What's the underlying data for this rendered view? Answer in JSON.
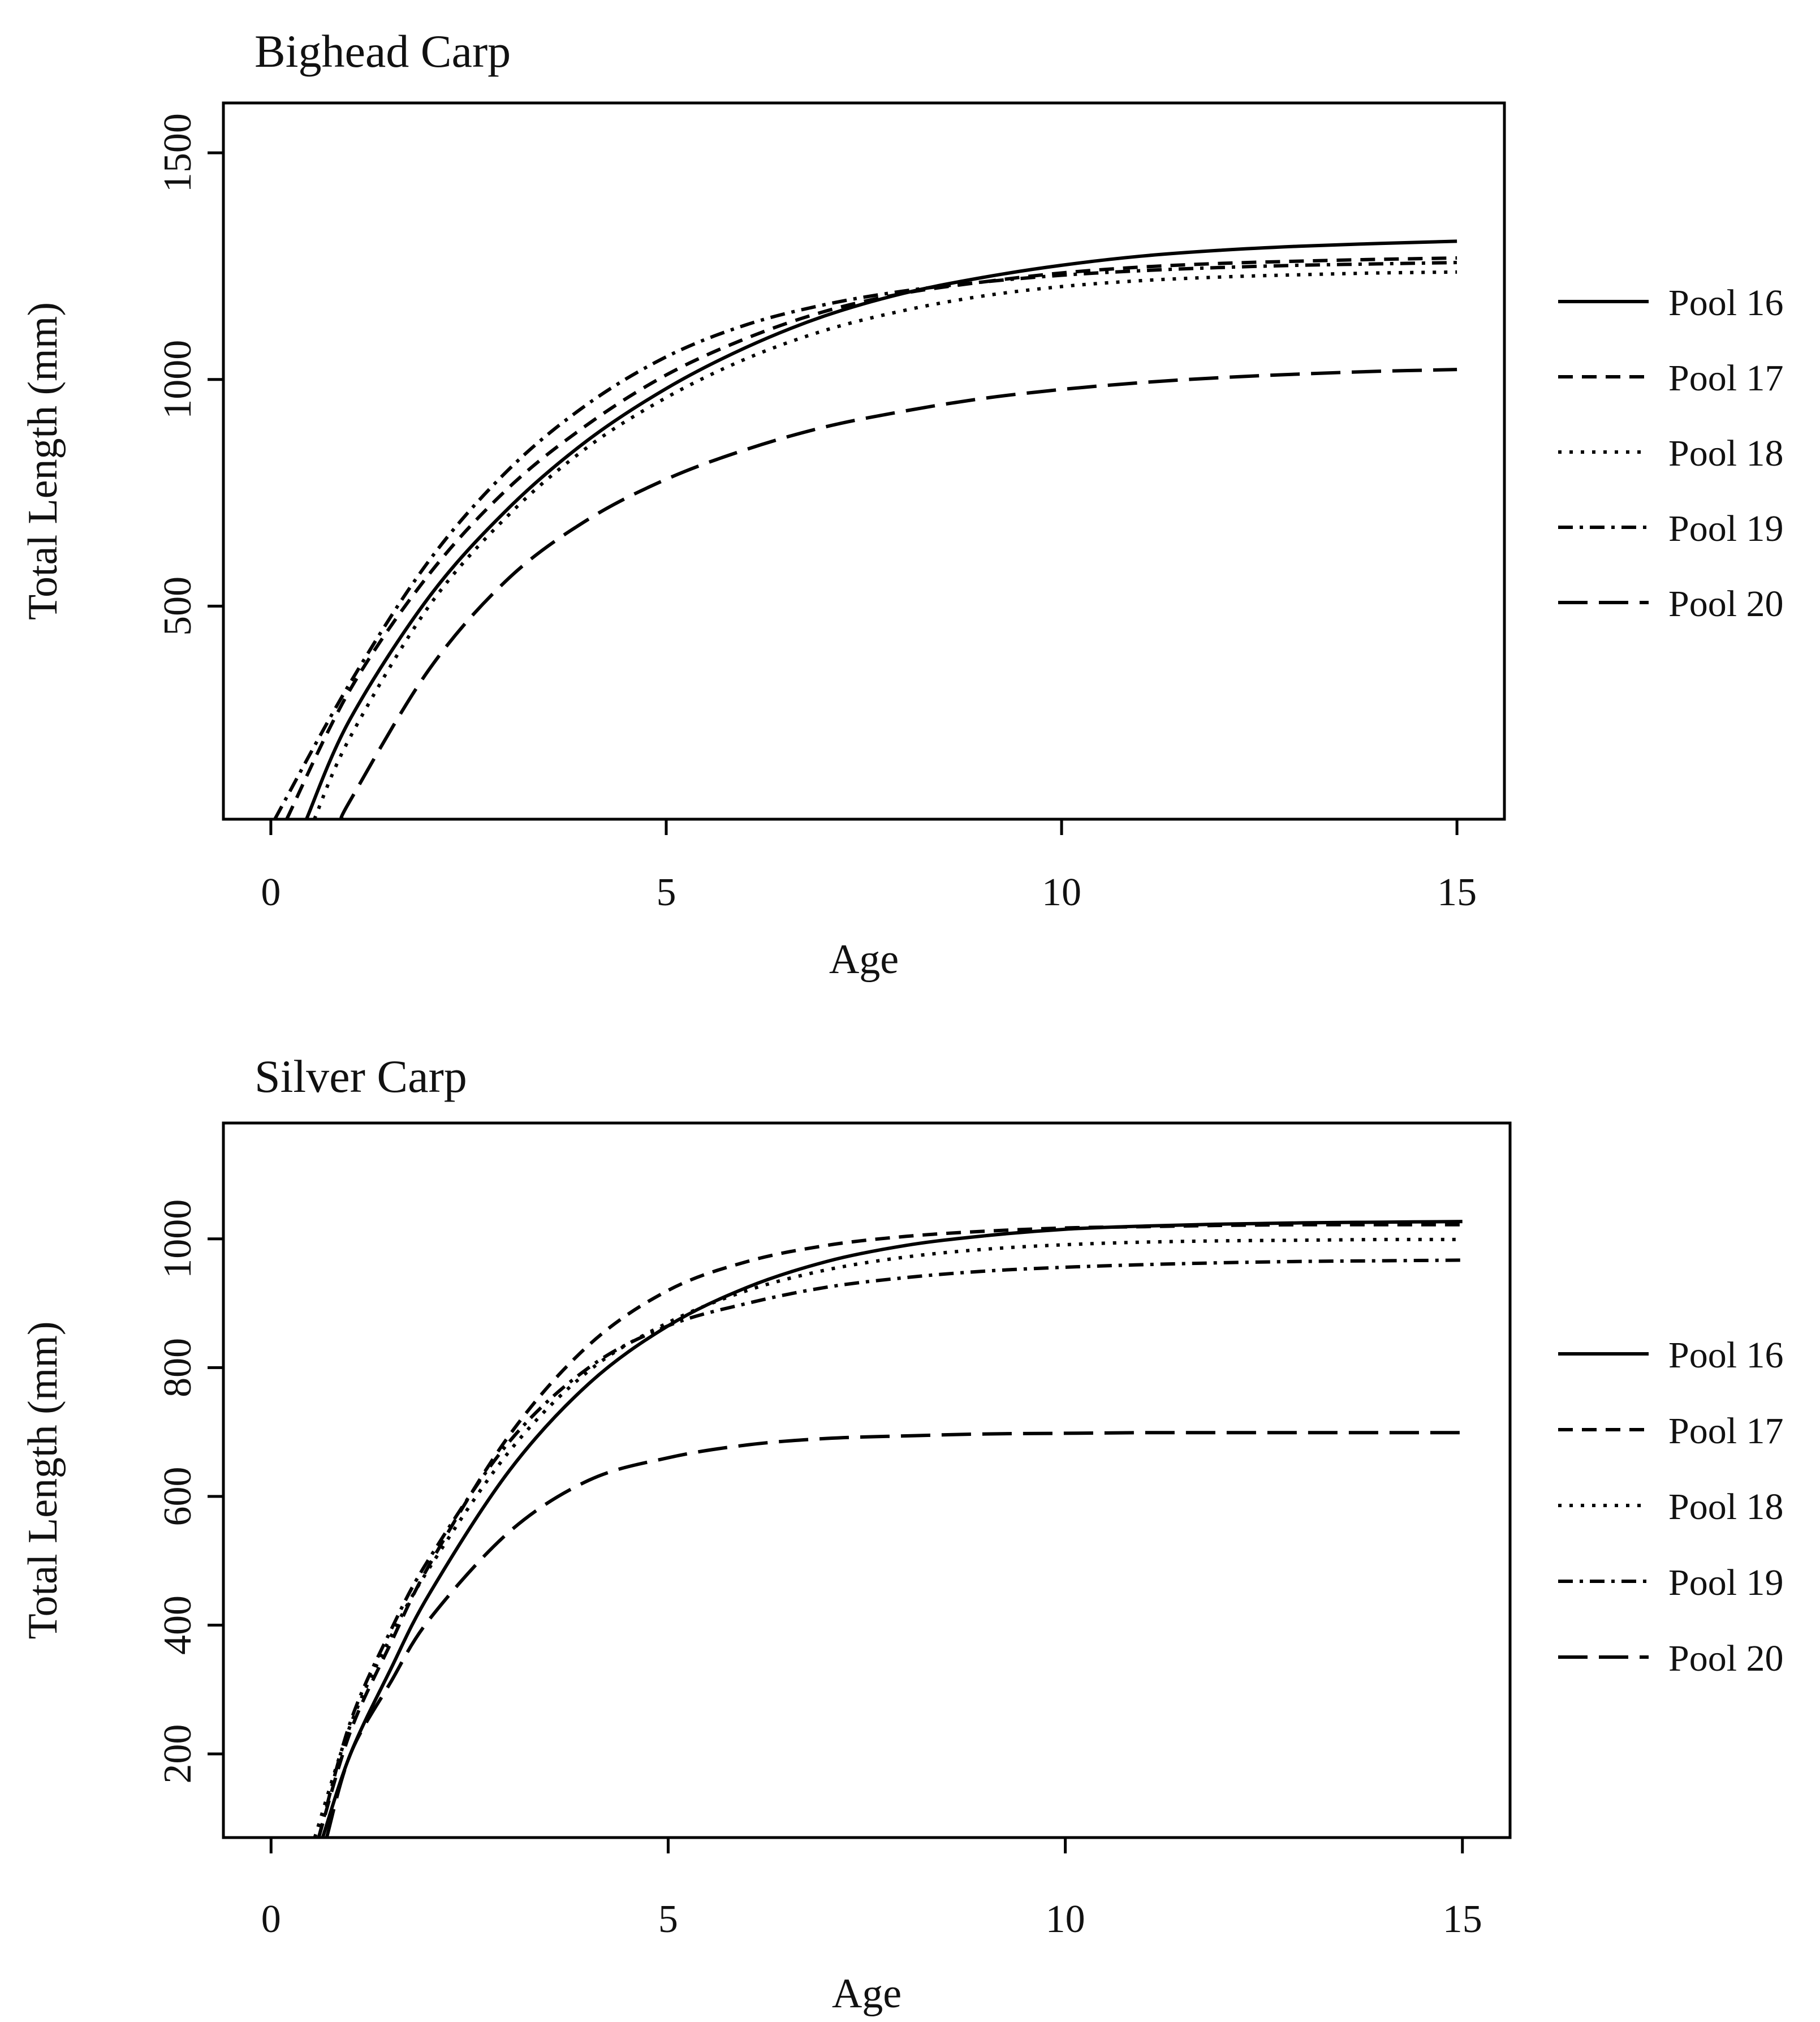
{
  "chart_data": [
    {
      "type": "line",
      "title": "Bighead Carp",
      "xlabel": "Age",
      "ylabel": "Total Length (mm)",
      "xlim": [
        -0.6,
        15.6
      ],
      "ylim": [
        30,
        1610
      ],
      "xticks": [
        0,
        5,
        10,
        15
      ],
      "yticks": [
        500,
        1000,
        1500
      ],
      "grid": false,
      "legend_position": "right",
      "series": [
        {
          "name": "Pool 16",
          "dash": "solid",
          "x": [
            0.45,
            1,
            2,
            3,
            4,
            5,
            6,
            7,
            8,
            9,
            10,
            11,
            12,
            13,
            14,
            15
          ],
          "y": [
            30,
            250,
            520,
            715,
            865,
            980,
            1070,
            1140,
            1190,
            1225,
            1252,
            1272,
            1285,
            1294,
            1300,
            1305
          ]
        },
        {
          "name": "Pool 17",
          "dash": "dashed",
          "x": [
            0.2,
            1,
            2,
            3,
            4,
            5,
            6,
            7,
            8,
            9,
            10,
            11,
            12,
            13,
            14,
            15
          ],
          "y": [
            30,
            315,
            570,
            760,
            900,
            1010,
            1090,
            1150,
            1190,
            1215,
            1235,
            1248,
            1256,
            1261,
            1265,
            1268
          ]
        },
        {
          "name": "Pool 18",
          "dash": "dotted",
          "x": [
            0.55,
            1,
            2,
            3,
            4,
            5,
            6,
            7,
            8,
            9,
            10,
            11,
            12,
            13,
            14,
            15
          ],
          "y": [
            30,
            210,
            500,
            700,
            850,
            960,
            1045,
            1108,
            1152,
            1184,
            1205,
            1218,
            1226,
            1231,
            1235,
            1237
          ]
        },
        {
          "name": "Pool 19",
          "dash": "dashdot",
          "x": [
            0.05,
            1,
            2,
            3,
            4,
            5,
            6,
            7,
            8,
            9,
            10,
            11,
            12,
            13,
            14,
            15
          ],
          "y": [
            30,
            330,
            600,
            800,
            945,
            1050,
            1120,
            1165,
            1195,
            1215,
            1230,
            1240,
            1247,
            1252,
            1255,
            1258
          ]
        },
        {
          "name": "Pool 20",
          "dash": "longdash",
          "x": [
            0.9,
            1,
            2,
            3,
            4,
            5,
            6,
            7,
            8,
            9,
            10,
            11,
            12,
            13,
            14,
            15
          ],
          "y": [
            30,
            70,
            360,
            560,
            690,
            780,
            845,
            895,
            930,
            958,
            978,
            993,
            1004,
            1012,
            1018,
            1022
          ]
        }
      ]
    },
    {
      "type": "line",
      "title": "Silver Carp",
      "xlabel": "Age",
      "ylabel": "Total Length (mm)",
      "xlim": [
        -0.6,
        15.6
      ],
      "ylim": [
        70,
        1180
      ],
      "xticks": [
        0,
        5,
        10,
        15
      ],
      "yticks": [
        200,
        400,
        600,
        800,
        1000
      ],
      "grid": false,
      "legend_position": "right",
      "series": [
        {
          "name": "Pool 16",
          "dash": "solid",
          "x": [
            0.65,
            1,
            1.5,
            2,
            3,
            4,
            5,
            6,
            7,
            8,
            9,
            10,
            11,
            12,
            13,
            14,
            15
          ],
          "y": [
            70,
            200,
            330,
            450,
            640,
            775,
            865,
            925,
            965,
            990,
            1005,
            1015,
            1020,
            1023,
            1025,
            1026,
            1027
          ]
        },
        {
          "name": "Pool 17",
          "dash": "dashed",
          "x": [
            0.6,
            1,
            1.5,
            2,
            3,
            4,
            5,
            6,
            7,
            8,
            9,
            10,
            11,
            12,
            13,
            14,
            15
          ],
          "y": [
            70,
            235,
            370,
            495,
            695,
            835,
            920,
            965,
            990,
            1004,
            1012,
            1017,
            1019,
            1021,
            1022,
            1022,
            1022
          ]
        },
        {
          "name": "Pool 18",
          "dash": "dotted",
          "x": [
            0.55,
            1,
            1.5,
            2,
            3,
            4,
            5,
            6,
            7,
            8,
            9,
            10,
            11,
            12,
            13,
            14,
            15
          ],
          "y": [
            70,
            245,
            380,
            490,
            670,
            795,
            870,
            920,
            952,
            972,
            984,
            991,
            995,
            997,
            998,
            999,
            999
          ]
        },
        {
          "name": "Pool 19",
          "dash": "dashdot",
          "x": [
            0.6,
            1,
            1.5,
            2,
            3,
            4,
            5,
            6,
            7,
            8,
            9,
            10,
            11,
            12,
            13,
            14,
            15
          ],
          "y": [
            70,
            250,
            390,
            505,
            685,
            800,
            865,
            900,
            925,
            940,
            950,
            956,
            960,
            963,
            965,
            966,
            967
          ]
        },
        {
          "name": "Pool 20",
          "dash": "longdash",
          "x": [
            0.7,
            1,
            1.5,
            2,
            3,
            4,
            5,
            6,
            7,
            8,
            9,
            10,
            11,
            12,
            13,
            14,
            15
          ],
          "y": [
            70,
            200,
            310,
            410,
            545,
            625,
            660,
            680,
            690,
            694,
            697,
            698,
            699,
            699,
            699,
            699,
            699
          ]
        }
      ]
    }
  ]
}
